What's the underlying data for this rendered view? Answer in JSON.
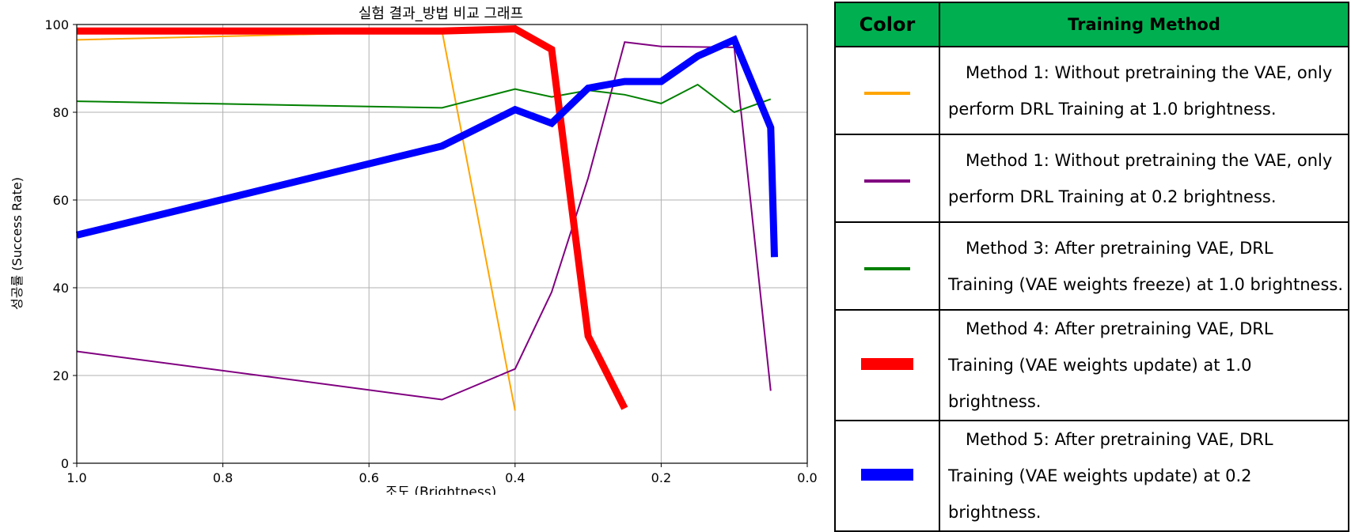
{
  "chart_data": {
    "type": "line",
    "title": "실험 결과_방법 비교 그래프",
    "xlabel": "조도 (Brightness)",
    "ylabel": "성공률 (Success Rate)",
    "xlim": [
      1.0,
      0.0
    ],
    "ylim": [
      0,
      100
    ],
    "x_ticks": [
      "1.0",
      "0.8",
      "0.6",
      "0.4",
      "0.2",
      "0.0"
    ],
    "y_ticks": [
      "0",
      "20",
      "40",
      "60",
      "80",
      "100"
    ],
    "grid": true,
    "series": [
      {
        "color": "#ffa500",
        "line_weight": "thin",
        "points": [
          [
            1.0,
            96.5
          ],
          [
            0.5,
            98.5
          ],
          [
            0.4,
            12
          ]
        ]
      },
      {
        "color": "#800080",
        "line_weight": "thin",
        "points": [
          [
            1.0,
            25.5
          ],
          [
            0.5,
            14.5
          ],
          [
            0.4,
            21.5
          ],
          [
            0.35,
            39
          ],
          [
            0.3,
            65
          ],
          [
            0.25,
            96
          ],
          [
            0.2,
            95
          ],
          [
            0.1,
            94.8
          ],
          [
            0.05,
            16.5
          ]
        ]
      },
      {
        "color": "#008000",
        "line_weight": "thin",
        "points": [
          [
            1.0,
            82.5
          ],
          [
            0.5,
            81
          ],
          [
            0.4,
            85.3
          ],
          [
            0.35,
            83.5
          ],
          [
            0.3,
            85
          ],
          [
            0.25,
            84
          ],
          [
            0.2,
            82
          ],
          [
            0.15,
            86.3
          ],
          [
            0.1,
            80
          ],
          [
            0.05,
            83
          ]
        ]
      },
      {
        "color": "#ff0000",
        "line_weight": "thick",
        "points": [
          [
            1.0,
            98.5
          ],
          [
            0.5,
            98.5
          ],
          [
            0.4,
            99
          ],
          [
            0.35,
            94.3
          ],
          [
            0.3,
            29
          ],
          [
            0.25,
            12.5
          ]
        ]
      },
      {
        "color": "#0000ff",
        "line_weight": "thick",
        "points": [
          [
            1.0,
            52
          ],
          [
            0.5,
            72.3
          ],
          [
            0.4,
            80.6
          ],
          [
            0.35,
            77.5
          ],
          [
            0.3,
            85.5
          ],
          [
            0.25,
            87
          ],
          [
            0.2,
            87
          ],
          [
            0.15,
            92.8
          ],
          [
            0.1,
            96.5
          ],
          [
            0.05,
            76.5
          ],
          [
            0.045,
            47
          ]
        ]
      }
    ]
  },
  "legend": {
    "header_color": "Color",
    "header_method": "Training Method",
    "header_bg": "#00b050",
    "rows": [
      {
        "color": "#ffa500",
        "line1": "Method 1: Without pretraining the VAE, only",
        "line2": "perform DRL Training at 1.0 brightness."
      },
      {
        "color": "#800080",
        "line1": "Method 1: Without pretraining the VAE, only",
        "line2": "perform DRL Training at 0.2 brightness."
      },
      {
        "color": "#008000",
        "line1": "Method 3: After pretraining VAE, DRL",
        "line2": "Training (VAE weights freeze) at 1.0 brightness."
      },
      {
        "color": "#ff0000",
        "line1": "Method 4: After pretraining VAE, DRL",
        "line2": "Training (VAE weights update) at 1.0 brightness."
      },
      {
        "color": "#0000ff",
        "line1": "Method 5: After pretraining VAE, DRL",
        "line2": "Training (VAE weights update) at 0.2 brightness."
      }
    ]
  }
}
